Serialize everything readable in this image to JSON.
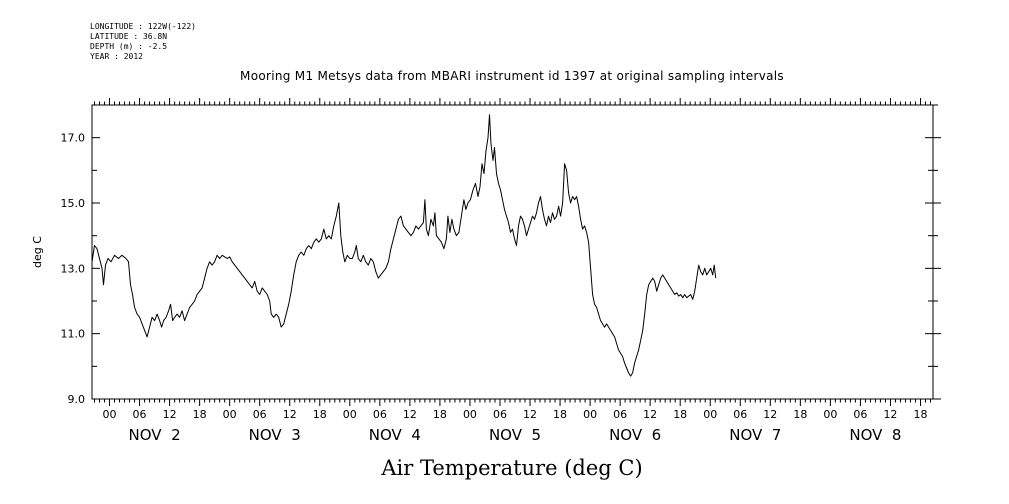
{
  "header": {
    "lines": [
      "LONGITUDE : 122W(-122)",
      "LATITUDE : 36.8N",
      "DEPTH (m) : -2.5",
      "YEAR : 2012"
    ]
  },
  "chart_data": {
    "type": "line",
    "title": "Mooring M1 Metsys data from MBARI instrument id 1397 at original sampling intervals",
    "xlabel": "Air Temperature (deg C)",
    "ylabel": "deg C",
    "x_unit": "hours since NOV 1 00:00 (2012)",
    "xlim": [
      20.5,
      188.5
    ],
    "ylim": [
      9.0,
      18.0
    ],
    "y_ticks": [
      {
        "value": 9,
        "label": "9.0"
      },
      {
        "value": 11,
        "label": "11.0"
      },
      {
        "value": 13,
        "label": "13.0"
      },
      {
        "value": 15,
        "label": "15.0"
      },
      {
        "value": 17,
        "label": "17.0"
      }
    ],
    "x_hour_ticks": [
      {
        "x": 24,
        "label": "00"
      },
      {
        "x": 30,
        "label": "06"
      },
      {
        "x": 36,
        "label": "12"
      },
      {
        "x": 42,
        "label": "18"
      },
      {
        "x": 48,
        "label": "00"
      },
      {
        "x": 54,
        "label": "06"
      },
      {
        "x": 60,
        "label": "12"
      },
      {
        "x": 66,
        "label": "18"
      },
      {
        "x": 72,
        "label": "00"
      },
      {
        "x": 78,
        "label": "06"
      },
      {
        "x": 84,
        "label": "12"
      },
      {
        "x": 90,
        "label": "18"
      },
      {
        "x": 96,
        "label": "00"
      },
      {
        "x": 102,
        "label": "06"
      },
      {
        "x": 108,
        "label": "12"
      },
      {
        "x": 114,
        "label": "18"
      },
      {
        "x": 120,
        "label": "00"
      },
      {
        "x": 126,
        "label": "06"
      },
      {
        "x": 132,
        "label": "12"
      },
      {
        "x": 138,
        "label": "18"
      },
      {
        "x": 144,
        "label": "00"
      },
      {
        "x": 150,
        "label": "06"
      },
      {
        "x": 156,
        "label": "12"
      },
      {
        "x": 162,
        "label": "18"
      },
      {
        "x": 168,
        "label": "00"
      },
      {
        "x": 174,
        "label": "06"
      },
      {
        "x": 180,
        "label": "12"
      },
      {
        "x": 186,
        "label": "18"
      }
    ],
    "x_day_labels": [
      {
        "x": 33,
        "label": "NOV  2"
      },
      {
        "x": 57,
        "label": "NOV  3"
      },
      {
        "x": 81,
        "label": "NOV  4"
      },
      {
        "x": 105,
        "label": "NOV  5"
      },
      {
        "x": 129,
        "label": "NOV  6"
      },
      {
        "x": 153,
        "label": "NOV  7"
      },
      {
        "x": 177,
        "label": "NOV  8"
      }
    ],
    "series": [
      {
        "points": [
          [
            20.5,
            13.2
          ],
          [
            21.0,
            13.7
          ],
          [
            21.5,
            13.6
          ],
          [
            22.0,
            13.3
          ],
          [
            22.5,
            13.0
          ],
          [
            22.8,
            12.5
          ],
          [
            23.2,
            13.1
          ],
          [
            23.7,
            13.3
          ],
          [
            24.3,
            13.2
          ],
          [
            25.0,
            13.4
          ],
          [
            25.8,
            13.3
          ],
          [
            26.5,
            13.4
          ],
          [
            27.3,
            13.3
          ],
          [
            27.8,
            13.2
          ],
          [
            28.2,
            12.5
          ],
          [
            28.6,
            12.2
          ],
          [
            29.0,
            11.8
          ],
          [
            29.5,
            11.6
          ],
          [
            30.0,
            11.5
          ],
          [
            30.5,
            11.3
          ],
          [
            31.0,
            11.1
          ],
          [
            31.5,
            10.9
          ],
          [
            32.0,
            11.2
          ],
          [
            32.5,
            11.5
          ],
          [
            33.0,
            11.4
          ],
          [
            33.5,
            11.6
          ],
          [
            34.0,
            11.4
          ],
          [
            34.4,
            11.2
          ],
          [
            34.8,
            11.4
          ],
          [
            35.3,
            11.5
          ],
          [
            35.8,
            11.7
          ],
          [
            36.2,
            11.9
          ],
          [
            36.6,
            11.4
          ],
          [
            37.0,
            11.5
          ],
          [
            37.5,
            11.6
          ],
          [
            38.0,
            11.5
          ],
          [
            38.5,
            11.7
          ],
          [
            39.0,
            11.4
          ],
          [
            39.5,
            11.6
          ],
          [
            40.0,
            11.8
          ],
          [
            40.5,
            11.9
          ],
          [
            41.0,
            12.0
          ],
          [
            41.5,
            12.2
          ],
          [
            42.0,
            12.3
          ],
          [
            42.5,
            12.4
          ],
          [
            43.0,
            12.7
          ],
          [
            43.5,
            13.0
          ],
          [
            44.0,
            13.2
          ],
          [
            44.5,
            13.1
          ],
          [
            45.0,
            13.2
          ],
          [
            45.5,
            13.4
          ],
          [
            46.0,
            13.3
          ],
          [
            46.5,
            13.4
          ],
          [
            47.0,
            13.35
          ],
          [
            47.5,
            13.3
          ],
          [
            48.0,
            13.35
          ],
          [
            48.5,
            13.2
          ],
          [
            49.0,
            13.1
          ],
          [
            49.5,
            13.0
          ],
          [
            50.0,
            12.9
          ],
          [
            50.5,
            12.8
          ],
          [
            51.0,
            12.7
          ],
          [
            51.5,
            12.6
          ],
          [
            52.0,
            12.5
          ],
          [
            52.5,
            12.4
          ],
          [
            53.0,
            12.6
          ],
          [
            53.5,
            12.3
          ],
          [
            54.0,
            12.2
          ],
          [
            54.5,
            12.4
          ],
          [
            55.0,
            12.3
          ],
          [
            55.5,
            12.2
          ],
          [
            56.0,
            12.0
          ],
          [
            56.3,
            11.6
          ],
          [
            56.8,
            11.5
          ],
          [
            57.3,
            11.6
          ],
          [
            57.8,
            11.5
          ],
          [
            58.3,
            11.2
          ],
          [
            58.8,
            11.3
          ],
          [
            59.3,
            11.6
          ],
          [
            59.8,
            11.9
          ],
          [
            60.3,
            12.3
          ],
          [
            60.8,
            12.8
          ],
          [
            61.3,
            13.2
          ],
          [
            61.8,
            13.4
          ],
          [
            62.3,
            13.5
          ],
          [
            62.8,
            13.4
          ],
          [
            63.3,
            13.6
          ],
          [
            63.8,
            13.7
          ],
          [
            64.3,
            13.6
          ],
          [
            64.8,
            13.8
          ],
          [
            65.3,
            13.9
          ],
          [
            65.8,
            13.8
          ],
          [
            66.3,
            13.9
          ],
          [
            66.8,
            14.2
          ],
          [
            67.3,
            13.9
          ],
          [
            67.8,
            14.0
          ],
          [
            68.3,
            13.9
          ],
          [
            68.8,
            14.3
          ],
          [
            69.3,
            14.6
          ],
          [
            69.8,
            15.0
          ],
          [
            70.2,
            14.0
          ],
          [
            70.6,
            13.5
          ],
          [
            71.0,
            13.2
          ],
          [
            71.5,
            13.4
          ],
          [
            72.0,
            13.3
          ],
          [
            72.5,
            13.3
          ],
          [
            73.0,
            13.5
          ],
          [
            73.3,
            13.7
          ],
          [
            73.7,
            13.3
          ],
          [
            74.2,
            13.2
          ],
          [
            74.7,
            13.4
          ],
          [
            75.2,
            13.2
          ],
          [
            75.7,
            13.1
          ],
          [
            76.2,
            13.3
          ],
          [
            76.7,
            13.2
          ],
          [
            77.2,
            12.9
          ],
          [
            77.7,
            12.7
          ],
          [
            78.2,
            12.8
          ],
          [
            78.7,
            12.9
          ],
          [
            79.2,
            13.0
          ],
          [
            79.7,
            13.2
          ],
          [
            80.2,
            13.6
          ],
          [
            80.7,
            13.9
          ],
          [
            81.2,
            14.2
          ],
          [
            81.7,
            14.5
          ],
          [
            82.2,
            14.6
          ],
          [
            82.7,
            14.3
          ],
          [
            83.2,
            14.2
          ],
          [
            83.7,
            14.1
          ],
          [
            84.2,
            14.0
          ],
          [
            84.7,
            14.1
          ],
          [
            85.2,
            14.3
          ],
          [
            85.7,
            14.2
          ],
          [
            86.2,
            14.3
          ],
          [
            86.7,
            14.4
          ],
          [
            87.0,
            15.1
          ],
          [
            87.3,
            14.2
          ],
          [
            87.7,
            14.0
          ],
          [
            88.2,
            14.5
          ],
          [
            88.7,
            14.3
          ],
          [
            89.0,
            14.7
          ],
          [
            89.3,
            14.0
          ],
          [
            89.8,
            13.9
          ],
          [
            90.3,
            13.8
          ],
          [
            90.8,
            13.6
          ],
          [
            91.3,
            13.9
          ],
          [
            91.6,
            14.6
          ],
          [
            92.0,
            14.1
          ],
          [
            92.4,
            14.5
          ],
          [
            92.8,
            14.2
          ],
          [
            93.3,
            14.0
          ],
          [
            93.8,
            14.1
          ],
          [
            94.3,
            14.6
          ],
          [
            94.8,
            15.1
          ],
          [
            95.2,
            14.8
          ],
          [
            95.6,
            15.0
          ],
          [
            96.1,
            15.1
          ],
          [
            96.6,
            15.4
          ],
          [
            97.1,
            15.6
          ],
          [
            97.6,
            15.2
          ],
          [
            98.0,
            15.5
          ],
          [
            98.4,
            16.2
          ],
          [
            98.8,
            15.9
          ],
          [
            99.2,
            16.6
          ],
          [
            99.6,
            17.0
          ],
          [
            99.9,
            17.7
          ],
          [
            100.2,
            16.8
          ],
          [
            100.6,
            16.3
          ],
          [
            100.9,
            16.7
          ],
          [
            101.3,
            15.9
          ],
          [
            101.7,
            15.6
          ],
          [
            102.1,
            15.4
          ],
          [
            102.5,
            15.1
          ],
          [
            102.9,
            14.8
          ],
          [
            103.3,
            14.6
          ],
          [
            103.7,
            14.4
          ],
          [
            104.1,
            14.1
          ],
          [
            104.5,
            14.2
          ],
          [
            104.9,
            13.9
          ],
          [
            105.3,
            13.7
          ],
          [
            105.7,
            14.3
          ],
          [
            106.1,
            14.6
          ],
          [
            106.5,
            14.5
          ],
          [
            106.9,
            14.3
          ],
          [
            107.3,
            14.0
          ],
          [
            107.7,
            14.2
          ],
          [
            108.1,
            14.4
          ],
          [
            108.5,
            14.6
          ],
          [
            108.9,
            14.5
          ],
          [
            109.3,
            14.7
          ],
          [
            109.7,
            15.0
          ],
          [
            110.1,
            15.2
          ],
          [
            110.5,
            14.8
          ],
          [
            110.9,
            14.5
          ],
          [
            111.3,
            14.3
          ],
          [
            111.7,
            14.6
          ],
          [
            112.1,
            14.4
          ],
          [
            112.5,
            14.7
          ],
          [
            112.9,
            14.5
          ],
          [
            113.3,
            14.6
          ],
          [
            113.7,
            14.9
          ],
          [
            114.1,
            14.6
          ],
          [
            114.5,
            15.0
          ],
          [
            114.9,
            16.2
          ],
          [
            115.3,
            16.0
          ],
          [
            115.7,
            15.3
          ],
          [
            116.1,
            15.0
          ],
          [
            116.5,
            15.2
          ],
          [
            116.9,
            15.1
          ],
          [
            117.3,
            15.2
          ],
          [
            117.7,
            14.9
          ],
          [
            118.1,
            14.5
          ],
          [
            118.5,
            14.2
          ],
          [
            118.9,
            14.3
          ],
          [
            119.3,
            14.1
          ],
          [
            119.7,
            13.8
          ],
          [
            120.1,
            13.0
          ],
          [
            120.5,
            12.2
          ],
          [
            120.9,
            11.9
          ],
          [
            121.3,
            11.8
          ],
          [
            121.7,
            11.6
          ],
          [
            122.1,
            11.4
          ],
          [
            122.5,
            11.3
          ],
          [
            122.9,
            11.2
          ],
          [
            123.3,
            11.3
          ],
          [
            123.7,
            11.2
          ],
          [
            124.1,
            11.1
          ],
          [
            124.5,
            11.0
          ],
          [
            124.9,
            10.9
          ],
          [
            125.3,
            10.7
          ],
          [
            125.7,
            10.5
          ],
          [
            126.1,
            10.4
          ],
          [
            126.5,
            10.3
          ],
          [
            126.9,
            10.1
          ],
          [
            127.3,
            9.95
          ],
          [
            127.7,
            9.8
          ],
          [
            128.1,
            9.7
          ],
          [
            128.5,
            9.8
          ],
          [
            128.9,
            10.1
          ],
          [
            129.3,
            10.3
          ],
          [
            129.7,
            10.5
          ],
          [
            130.1,
            10.8
          ],
          [
            130.5,
            11.1
          ],
          [
            130.9,
            11.6
          ],
          [
            131.3,
            12.2
          ],
          [
            131.7,
            12.5
          ],
          [
            132.1,
            12.6
          ],
          [
            132.5,
            12.7
          ],
          [
            132.9,
            12.6
          ],
          [
            133.3,
            12.3
          ],
          [
            133.7,
            12.5
          ],
          [
            134.1,
            12.7
          ],
          [
            134.5,
            12.8
          ],
          [
            134.9,
            12.7
          ],
          [
            135.3,
            12.6
          ],
          [
            135.7,
            12.5
          ],
          [
            136.1,
            12.4
          ],
          [
            136.5,
            12.3
          ],
          [
            136.9,
            12.2
          ],
          [
            137.3,
            12.25
          ],
          [
            137.7,
            12.15
          ],
          [
            138.1,
            12.2
          ],
          [
            138.5,
            12.1
          ],
          [
            138.9,
            12.2
          ],
          [
            139.3,
            12.1
          ],
          [
            139.7,
            12.15
          ],
          [
            140.1,
            12.2
          ],
          [
            140.5,
            12.05
          ],
          [
            140.9,
            12.3
          ],
          [
            141.3,
            12.7
          ],
          [
            141.7,
            13.1
          ],
          [
            142.1,
            12.9
          ],
          [
            142.5,
            12.8
          ],
          [
            142.9,
            13.0
          ],
          [
            143.3,
            12.8
          ],
          [
            143.7,
            12.9
          ],
          [
            144.1,
            13.0
          ],
          [
            144.5,
            12.8
          ],
          [
            144.8,
            13.1
          ],
          [
            145.1,
            12.7
          ]
        ]
      }
    ]
  }
}
